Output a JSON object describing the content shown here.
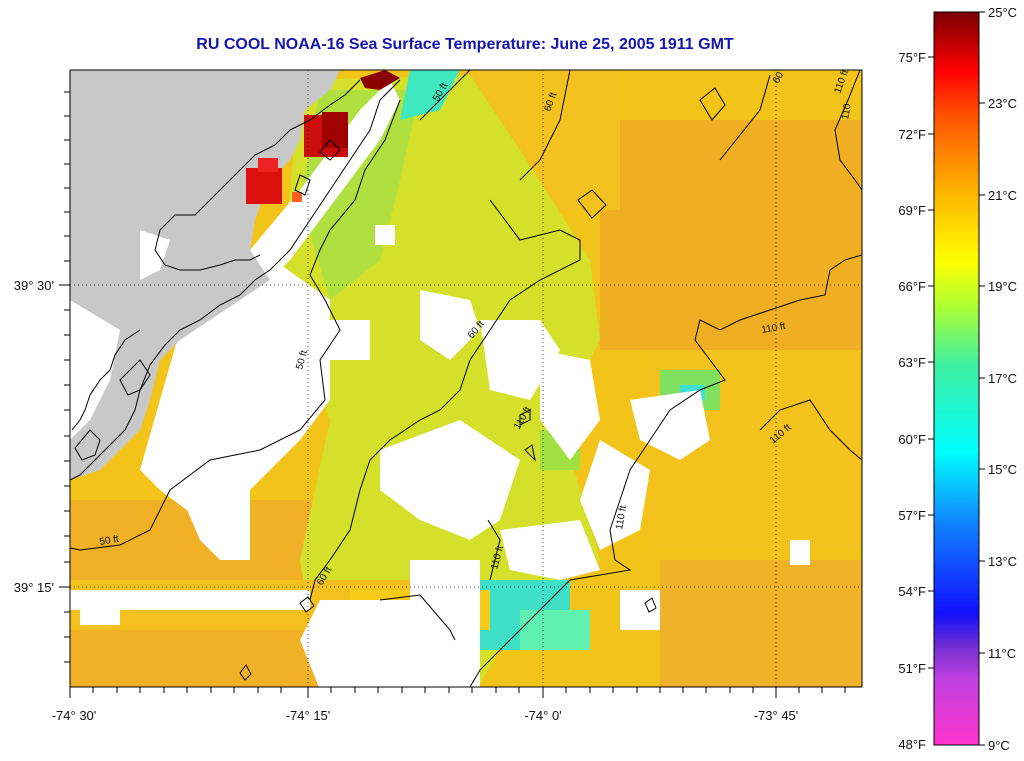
{
  "title": "RU COOL  NOAA-16  Sea Surface Temperature:  June 25, 2005 1911 GMT",
  "map": {
    "longitude_labels": [
      "-74° 30'",
      "-74° 15'",
      "-74° 0'",
      "-73° 45'"
    ],
    "latitude_labels": [
      "39° 30'",
      "39° 15'"
    ],
    "contour_labels": [
      "50 ft",
      "60 ft",
      "60",
      "110 ft",
      "110 ft",
      "60 ft",
      "110 ft",
      "110 ft",
      "50 ft",
      "50 ft",
      "110 ft",
      "110 ft",
      "60 ft",
      "110"
    ],
    "colors": {
      "land": "#c8c8c8",
      "cloud_mask": "#ffffff",
      "grid": "#333333"
    }
  },
  "colorbar": {
    "celsius_labels": [
      "25°C",
      "23°C",
      "21°C",
      "19°C",
      "17°C",
      "15°C",
      "13°C",
      "11°C",
      "9°C"
    ],
    "fahrenheit_labels": [
      "75°F",
      "72°F",
      "69°F",
      "66°F",
      "63°F",
      "60°F",
      "57°F",
      "54°F",
      "51°F",
      "48°F"
    ]
  }
}
